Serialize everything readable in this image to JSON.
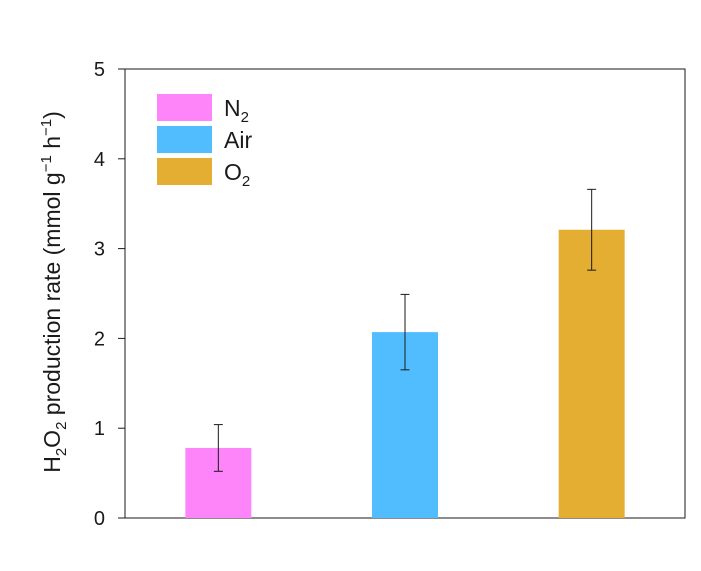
{
  "chart_data": {
    "type": "bar",
    "categories": [
      "N2",
      "Air",
      "O2"
    ],
    "values": [
      0.78,
      2.07,
      3.21
    ],
    "errors": [
      0.26,
      0.42,
      0.45
    ],
    "colors": [
      "#fd85f9",
      "#51bdfe",
      "#e3ae31"
    ],
    "ylabel": {
      "parts": [
        {
          "t": "H",
          "s": "n"
        },
        {
          "t": "2",
          "s": "sub"
        },
        {
          "t": "O",
          "s": "n"
        },
        {
          "t": "2",
          "s": "sub"
        },
        {
          "t": " production rate (mmol g",
          "s": "n"
        },
        {
          "t": "−1",
          "s": "sup"
        },
        {
          "t": " h",
          "s": "n"
        },
        {
          "t": "−1",
          "s": "sup"
        },
        {
          "t": ")",
          "s": "n"
        }
      ]
    },
    "ylim": [
      0,
      5
    ],
    "yticks": [
      "0",
      "1",
      "2",
      "3",
      "4",
      "5"
    ],
    "legend": {
      "position": "top-left",
      "entries": [
        {
          "base": "N",
          "sub": "2",
          "color": "#fd85f9"
        },
        {
          "base": "Air",
          "sub": "",
          "color": "#51bdfe"
        },
        {
          "base": "O",
          "sub": "2",
          "color": "#e3ae31"
        }
      ]
    }
  }
}
